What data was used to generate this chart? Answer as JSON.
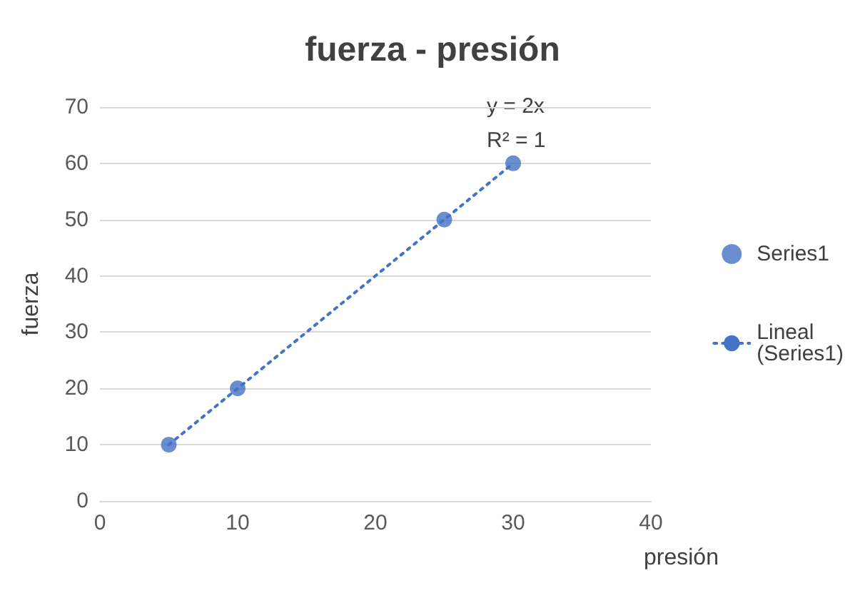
{
  "chart_data": {
    "type": "scatter",
    "title": "fuerza - presión",
    "xlabel": "presión",
    "ylabel": "fuerza",
    "series": [
      {
        "name": "Series1",
        "color": "#4472c4",
        "marker": "circle",
        "x": [
          5,
          10,
          25,
          30
        ],
        "values": [
          10,
          20,
          50,
          60
        ]
      },
      {
        "name": "Lineal (Series1)",
        "type": "line",
        "color": "#4472c4",
        "marker": "none",
        "line_style": "dotted",
        "x": [
          5,
          30
        ],
        "values": [
          10,
          60
        ]
      }
    ],
    "annotations": [
      "y = 2x",
      "R² = 1"
    ],
    "xlim": [
      0,
      40
    ],
    "xticks": [
      0,
      10,
      20,
      30,
      40
    ],
    "ylim": [
      0,
      70
    ],
    "yticks": [
      0,
      10,
      20,
      30,
      40,
      50,
      60,
      70
    ],
    "grid": "y",
    "legend": "right"
  }
}
